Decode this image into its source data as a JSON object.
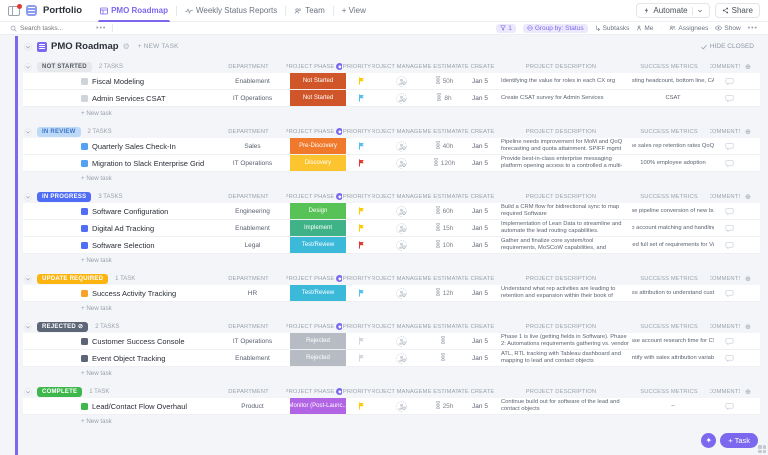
{
  "topbar": {
    "workspace_label": "Portfolio",
    "tabs": [
      {
        "label": "PMO Roadmap",
        "active": true
      },
      {
        "label": "Weekly Status Reports",
        "active": false
      },
      {
        "label": "Team",
        "active": false
      }
    ],
    "add_view_label": "+ View",
    "automate_label": "Automate",
    "share_label": "Share"
  },
  "toolbar": {
    "search_placeholder": "Search tasks...",
    "filter_count": "1",
    "group_by_label": "Group by: Status",
    "subtasks_label": "Subtasks",
    "me_label": "Me",
    "assignees_label": "Assignees",
    "show_label": "Show"
  },
  "view": {
    "title": "PMO Roadmap",
    "new_task_label": "+ NEW TASK",
    "hide_closed_label": "HIDE CLOSED",
    "add_row_label": "+ New task",
    "columns": [
      "DEPARTMENT",
      "PROJECT PHASE",
      "PRIORITY",
      "PROJECT MANAGER",
      "TIME ESTIMATE",
      "DATE CREATED",
      "PROJECT DESCRIPTION",
      "SUCCESS METRICS",
      "COMMENTS"
    ]
  },
  "fab": {
    "task_label": "+ Task"
  },
  "colors": {
    "accent": "#7b68ee",
    "page_bg": "#f4f5f9"
  },
  "groups": [
    {
      "label": "NOT STARTED",
      "count": "2 TASKS",
      "pill_bg": "#e6e8ec",
      "pill_fg": "#555b65",
      "square": "#cfd4db",
      "lock": false,
      "tasks": [
        {
          "name": "Fiscal Modeling",
          "department": "Enablement",
          "phase": "Not Started",
          "phase_bg": "#d0562a",
          "flag": "#fdcb00",
          "time": "50h",
          "date": "Jan 5",
          "desc": "Identifying the value for roles in each CX org",
          "metrics": "Forecasting headcount, bottom line, CAC, C..."
        },
        {
          "name": "Admin Services CSAT",
          "department": "IT Operations",
          "phase": "Not Started",
          "phase_bg": "#d0562a",
          "flag": "#54c0f0",
          "time": "8h",
          "date": "Jan 5",
          "desc": "Create CSAT survey for Admin Services",
          "metrics": "CSAT"
        }
      ]
    },
    {
      "label": "IN REVIEW",
      "count": "2 TASKS",
      "pill_bg": "#bcd9f8",
      "pill_fg": "#3f74c5",
      "square": "#54a1f2",
      "lock": false,
      "tasks": [
        {
          "name": "Quarterly Sales Check-In",
          "department": "Sales",
          "phase": "Pre-Discovery",
          "phase_bg": "#f0792c",
          "flag": "#54c0f0",
          "time": "40h",
          "date": "Jan 5",
          "desc": "Pipeline needs improvement for MoM and QoQ forecasting and quota attainment.  SPIFF mgmt process...",
          "metrics": "Increase sales rep retention rates QoQ and ..."
        },
        {
          "name": "Migration to Slack Enterprise Grid",
          "department": "IT Operations",
          "phase": "Discovery",
          "phase_bg": "#fcc42e",
          "flag": "#e2392e",
          "time": "120h",
          "date": "Jan 5",
          "desc": "Provide best-in-class enterprise messaging platform opening access to a controlled a multi-instance env...",
          "metrics": "100% employee adoption"
        }
      ]
    },
    {
      "label": "IN PROGRESS",
      "count": "3 TASKS",
      "pill_bg": "#4f6df5",
      "pill_fg": "#ffffff",
      "square": "#4f6df5",
      "lock": false,
      "tasks": [
        {
          "name": "Software Configuration",
          "department": "Engineering",
          "phase": "Design",
          "phase_bg": "#57c255",
          "flag": "#fdcb00",
          "time": "60h",
          "date": "Jan 5",
          "desc": "Build a CRM flow for bidirectional sync to map required Software",
          "metrics": "Increase pipeline conversion of new busine..."
        },
        {
          "name": "Digital Ad Tracking",
          "department": "Enablement",
          "phase": "Implement",
          "phase_bg": "#3fb287",
          "flag": "#fdcb00",
          "time": "15h",
          "date": "Jan 5",
          "desc": "Implementation of Lean Data to streamline and automate the lead routing capabilities.",
          "metrics": "Lead to account matching and handling of f..."
        },
        {
          "name": "Software Selection",
          "department": "Legal",
          "phase": "Test/Review",
          "phase_bg": "#3bb9d9",
          "flag": "#e2392e",
          "time": "10h",
          "date": "Jan 5",
          "desc": "Gather and finalize core system/tool requirements, MoSCoW capabilities, and acceptance criteria for C...",
          "metrics": "Finalized full set of requirements for Vendo..."
        }
      ]
    },
    {
      "label": "UPDATE REQUIRED",
      "count": "1 TASK",
      "pill_bg": "#fcb410",
      "pill_fg": "#ffffff",
      "square": "#f7a32b",
      "lock": false,
      "tasks": [
        {
          "name": "Success Activity Tracking",
          "department": "HR",
          "phase": "Test/Review",
          "phase_bg": "#3bb9d9",
          "flag": "#54c0f0",
          "time": "12h",
          "date": "Jan 5",
          "desc": "Understand what rep activities are leading to retention and expansion within their book of accounts.",
          "metrics": "Success attribution to understand custome..."
        }
      ]
    },
    {
      "label": "REJECTED",
      "count": "2 TASKS",
      "pill_bg": "#5c6676",
      "pill_fg": "#ffffff",
      "square": "#5c6676",
      "lock": true,
      "tasks": [
        {
          "name": "Customer Success Console",
          "department": "IT Operations",
          "phase": "Rejected",
          "phase_bg": "#b7bcc4",
          "flag": "#d3d7dd",
          "time": "",
          "date": "Jan 5",
          "desc": "Phase 1 is live (getting fields in Software).  Phase 2: Automations requirements gathering vs. vendor pur...",
          "metrics": "Decrease account research time for CSMs ..."
        },
        {
          "name": "Event Object Tracking",
          "department": "Enablement",
          "phase": "Rejected",
          "phase_bg": "#b7bcc4",
          "flag": "#d3d7dd",
          "time": "",
          "date": "Jan 5",
          "desc": "ATL, RTL tracking with Tableau dashboard and mapping to lead and contact objects",
          "metrics": "To identify with sales attribution variables t..."
        }
      ]
    },
    {
      "label": "COMPLETE",
      "count": "1 TASK",
      "pill_bg": "#3eb84c",
      "pill_fg": "#ffffff",
      "square": "#3eb84c",
      "lock": false,
      "tasks": [
        {
          "name": "Lead/Contact Flow Overhaul",
          "department": "Product",
          "phase": "Monitor (Post-Launc...",
          "phase_bg": "#b164e4",
          "flag": "#fdcb00",
          "time": "25h",
          "date": "Jan 5",
          "desc": "Continue build out for software of the lead and contact objects",
          "metrics": "–"
        }
      ]
    }
  ]
}
